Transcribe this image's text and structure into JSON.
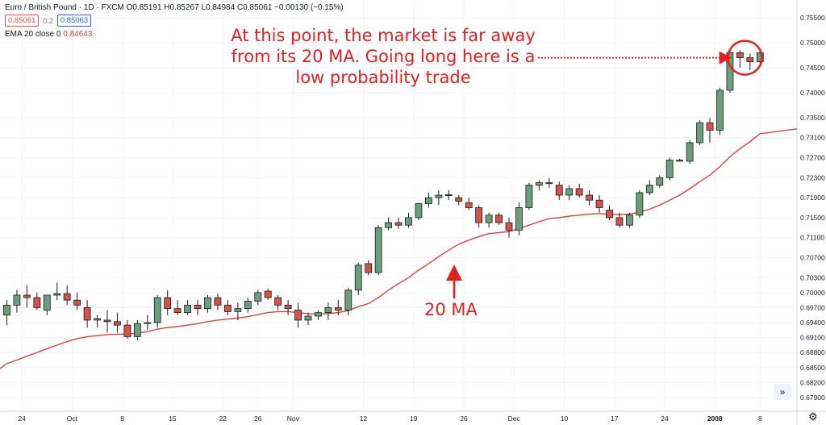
{
  "header": {
    "symbol": "Euro / British Pound · 1D · FXCM",
    "ohlc": "O0.85191 H0.85267 L0.84984 C0.85061 −0.00130 (−0.15%)",
    "bid": "0.85061",
    "spread": "0.2",
    "ask": "0.85063",
    "ema_label": "EMA 20 close 0",
    "ema_value": "0.84643"
  },
  "annotations": {
    "main": "At this point, the market is far away from its 20 MA. Going long here is a low probability trade",
    "ma_label": "20 MA"
  },
  "controls": {
    "scroll_icon": "double-chevron-right-icon",
    "settings_icon": "gear-icon"
  },
  "colors": {
    "up": "#6a9e7f",
    "down": "#d5524a",
    "ema": "#e04040",
    "annotation": "#e51e1e"
  },
  "chart_data": {
    "type": "candlestick",
    "y_ticks": [
      "0.75500",
      "0.75000",
      "0.74500",
      "0.74000",
      "0.73500",
      "0.73100",
      "0.72700",
      "0.72300",
      "0.71900",
      "0.71500",
      "0.71100",
      "0.70700",
      "0.70300",
      "0.70000",
      "0.69700",
      "0.69400",
      "0.69100",
      "0.68800",
      "0.68500",
      "0.68200",
      "0.67900"
    ],
    "x_ticks": [
      {
        "label": "24",
        "index": 1.5
      },
      {
        "label": "Oct",
        "index": 6.5
      },
      {
        "label": "8",
        "index": 11.5
      },
      {
        "label": "15",
        "index": 16.5
      },
      {
        "label": "22",
        "index": 21.5
      },
      {
        "label": "26",
        "index": 25
      },
      {
        "label": "Nov",
        "index": 28.5
      },
      {
        "label": "12",
        "index": 35.5
      },
      {
        "label": "19",
        "index": 40.5
      },
      {
        "label": "26",
        "index": 45.5
      },
      {
        "label": "Dec",
        "index": 50.5
      },
      {
        "label": "10",
        "index": 55.5
      },
      {
        "label": "17",
        "index": 60.5
      },
      {
        "label": "24",
        "index": 65.5
      },
      {
        "label": "2008",
        "index": 70.5
      },
      {
        "label": "8",
        "index": 75
      }
    ],
    "candles": [
      [
        0.6955,
        0.6985,
        0.6935,
        0.6975
      ],
      [
        0.6975,
        0.7005,
        0.696,
        0.6995
      ],
      [
        0.6995,
        0.7015,
        0.697,
        0.699
      ],
      [
        0.699,
        0.7,
        0.6965,
        0.697
      ],
      [
        0.6965,
        0.6995,
        0.6955,
        0.6995
      ],
      [
        0.6995,
        0.702,
        0.6985,
        0.6998
      ],
      [
        0.6998,
        0.7015,
        0.6975,
        0.6985
      ],
      [
        0.6985,
        0.7,
        0.6965,
        0.6975
      ],
      [
        0.697,
        0.6985,
        0.693,
        0.6945
      ],
      [
        0.6945,
        0.6955,
        0.693,
        0.6948
      ],
      [
        0.6945,
        0.6965,
        0.692,
        0.6942
      ],
      [
        0.6942,
        0.696,
        0.692,
        0.6935
      ],
      [
        0.6935,
        0.6945,
        0.6908,
        0.6912
      ],
      [
        0.6912,
        0.6945,
        0.6905,
        0.6938
      ],
      [
        0.6938,
        0.6955,
        0.6925,
        0.694
      ],
      [
        0.694,
        0.6995,
        0.693,
        0.699
      ],
      [
        0.699,
        0.7005,
        0.6955,
        0.6968
      ],
      [
        0.6968,
        0.6985,
        0.6955,
        0.696
      ],
      [
        0.696,
        0.6985,
        0.6955,
        0.6975
      ],
      [
        0.6975,
        0.6985,
        0.6955,
        0.6968
      ],
      [
        0.6968,
        0.6995,
        0.696,
        0.699
      ],
      [
        0.699,
        0.6998,
        0.6965,
        0.6975
      ],
      [
        0.6975,
        0.6985,
        0.6955,
        0.6962
      ],
      [
        0.6962,
        0.698,
        0.6945,
        0.6968
      ],
      [
        0.6968,
        0.699,
        0.696,
        0.6983
      ],
      [
        0.6983,
        0.7005,
        0.6975,
        0.7
      ],
      [
        0.7003,
        0.7008,
        0.6985,
        0.699
      ],
      [
        0.699,
        0.6995,
        0.6965,
        0.6975
      ],
      [
        0.6975,
        0.6985,
        0.6955,
        0.6968
      ],
      [
        0.6965,
        0.698,
        0.693,
        0.6945
      ],
      [
        0.6945,
        0.696,
        0.6935,
        0.6953
      ],
      [
        0.6953,
        0.6965,
        0.6945,
        0.696
      ],
      [
        0.696,
        0.698,
        0.6945,
        0.697
      ],
      [
        0.697,
        0.6985,
        0.6955,
        0.6965
      ],
      [
        0.6965,
        0.701,
        0.6955,
        0.7005
      ],
      [
        0.7005,
        0.706,
        0.6995,
        0.7055
      ],
      [
        0.7058,
        0.7065,
        0.7035,
        0.704
      ],
      [
        0.704,
        0.7135,
        0.7035,
        0.713
      ],
      [
        0.713,
        0.715,
        0.7125,
        0.714
      ],
      [
        0.714,
        0.715,
        0.7128,
        0.7135
      ],
      [
        0.7135,
        0.716,
        0.713,
        0.715
      ],
      [
        0.715,
        0.718,
        0.7145,
        0.7178
      ],
      [
        0.7178,
        0.72,
        0.717,
        0.719
      ],
      [
        0.719,
        0.7205,
        0.7175,
        0.7195
      ],
      [
        0.7196,
        0.7205,
        0.7185,
        0.7195
      ],
      [
        0.719,
        0.7195,
        0.7175,
        0.7183
      ],
      [
        0.718,
        0.719,
        0.7165,
        0.717
      ],
      [
        0.717,
        0.7175,
        0.713,
        0.714
      ],
      [
        0.714,
        0.716,
        0.713,
        0.7155
      ],
      [
        0.7155,
        0.716,
        0.7135,
        0.714
      ],
      [
        0.714,
        0.715,
        0.711,
        0.7125
      ],
      [
        0.7125,
        0.718,
        0.7115,
        0.717
      ],
      [
        0.717,
        0.722,
        0.7165,
        0.7215
      ],
      [
        0.7215,
        0.7225,
        0.7205,
        0.722
      ],
      [
        0.722,
        0.723,
        0.721,
        0.7218
      ],
      [
        0.7215,
        0.7222,
        0.7185,
        0.7195
      ],
      [
        0.7195,
        0.7215,
        0.7185,
        0.7208
      ],
      [
        0.7208,
        0.7218,
        0.719,
        0.7195
      ],
      [
        0.7195,
        0.7205,
        0.7175,
        0.7185
      ],
      [
        0.7185,
        0.7195,
        0.716,
        0.717
      ],
      [
        0.7165,
        0.7175,
        0.7145,
        0.715
      ],
      [
        0.715,
        0.716,
        0.713,
        0.7135
      ],
      [
        0.7135,
        0.716,
        0.713,
        0.7155
      ],
      [
        0.7155,
        0.7205,
        0.715,
        0.72
      ],
      [
        0.72,
        0.7225,
        0.7195,
        0.7215
      ],
      [
        0.7215,
        0.7235,
        0.721,
        0.723
      ],
      [
        0.723,
        0.727,
        0.7225,
        0.7265
      ],
      [
        0.7265,
        0.7268,
        0.7262,
        0.7263
      ],
      [
        0.7263,
        0.7305,
        0.7258,
        0.73
      ],
      [
        0.73,
        0.7345,
        0.7295,
        0.734
      ],
      [
        0.734,
        0.735,
        0.73,
        0.7325
      ],
      [
        0.7325,
        0.741,
        0.7315,
        0.7405
      ],
      [
        0.7405,
        0.7485,
        0.74,
        0.748
      ],
      [
        0.748,
        0.7485,
        0.745,
        0.747
      ],
      [
        0.747,
        0.7478,
        0.7445,
        0.7462
      ],
      [
        0.7462,
        0.7485,
        0.7455,
        0.748
      ]
    ],
    "ema20": [
      0.6858,
      0.6865,
      0.6873,
      0.688,
      0.6888,
      0.6895,
      0.6902,
      0.6908,
      0.6912,
      0.6914,
      0.6916,
      0.6917,
      0.6917,
      0.6919,
      0.6922,
      0.6927,
      0.693,
      0.6932,
      0.6935,
      0.6938,
      0.6942,
      0.6945,
      0.6947,
      0.6949,
      0.6952,
      0.6956,
      0.696,
      0.6962,
      0.6962,
      0.696,
      0.6958,
      0.6957,
      0.6958,
      0.696,
      0.6964,
      0.6972,
      0.6978,
      0.699,
      0.7005,
      0.7018,
      0.703,
      0.7045,
      0.7058,
      0.7072,
      0.7085,
      0.7097,
      0.7105,
      0.7112,
      0.7118,
      0.712,
      0.7122,
      0.7128,
      0.7135,
      0.7142,
      0.7148,
      0.715,
      0.7153,
      0.7155,
      0.7157,
      0.7158,
      0.7157,
      0.7156,
      0.7157,
      0.7161,
      0.7167,
      0.7175,
      0.7185,
      0.7195,
      0.7208,
      0.7222,
      0.7235,
      0.7252,
      0.7272,
      0.7288,
      0.7302,
      0.7318
    ]
  }
}
